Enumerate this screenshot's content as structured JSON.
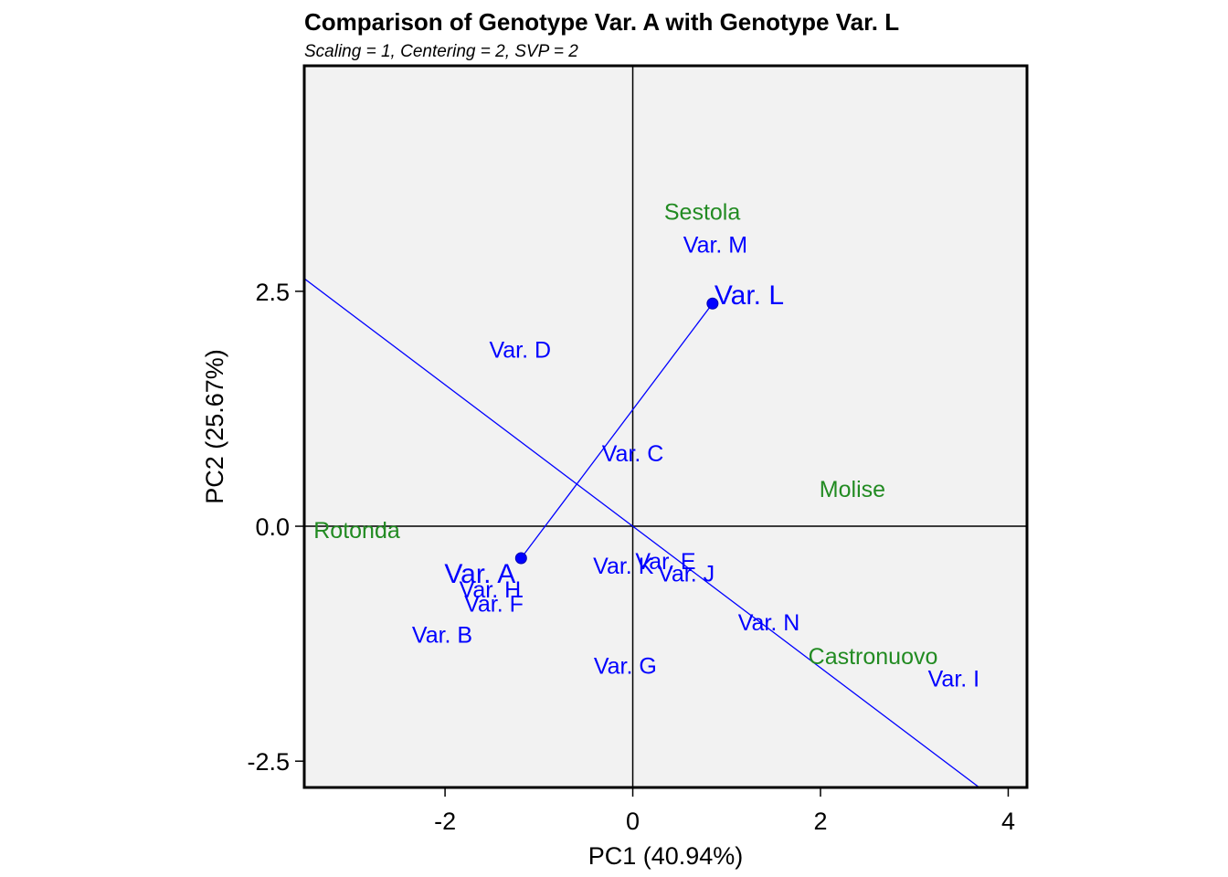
{
  "chart_data": {
    "type": "scatter",
    "title": "Comparison of Genotype Var. A with Genotype Var. L",
    "subtitle": "Scaling = 1, Centering = 2, SVP = 2",
    "xlabel": "PC1 (40.94%)",
    "ylabel": "PC2 (25.67%)",
    "xlim": [
      -3.5,
      4.2
    ],
    "ylim": [
      -2.78,
      4.9
    ],
    "xticks": [
      -2,
      0,
      2,
      4
    ],
    "xtick_labels": [
      "-2",
      "0",
      "2",
      "4"
    ],
    "yticks": [
      -2.5,
      0.0,
      2.5
    ],
    "ytick_labels": [
      "-2.5",
      "0.0",
      "2.5"
    ],
    "grid": false,
    "colors": {
      "panel_background": "#f2f2f2",
      "genotype": "#0000ff",
      "environment": "#228b22",
      "axes_lines": "#000000",
      "comparison_line": "#0000ff"
    },
    "genotypes": [
      {
        "label": "Var. A",
        "x": -1.19,
        "y": -0.34,
        "highlight": true
      },
      {
        "label": "Var. L",
        "x": 0.85,
        "y": 2.37,
        "highlight": true
      },
      {
        "label": "Var. M",
        "x": 0.88,
        "y": 3.0
      },
      {
        "label": "Var. D",
        "x": -1.2,
        "y": 1.88
      },
      {
        "label": "Var. C",
        "x": 0.0,
        "y": 0.78
      },
      {
        "label": "Var. H",
        "x": -1.52,
        "y": -0.67
      },
      {
        "label": "Var. F",
        "x": -1.48,
        "y": -0.82
      },
      {
        "label": "Var. B",
        "x": -2.03,
        "y": -1.15
      },
      {
        "label": "Var. K",
        "x": -0.1,
        "y": -0.42
      },
      {
        "label": "Var. E",
        "x": 0.35,
        "y": -0.37
      },
      {
        "label": "Var. J",
        "x": 0.57,
        "y": -0.5
      },
      {
        "label": "Var. N",
        "x": 1.45,
        "y": -1.02
      },
      {
        "label": "Var. G",
        "x": -0.08,
        "y": -1.48
      },
      {
        "label": "Var. I",
        "x": 3.42,
        "y": -1.62
      }
    ],
    "environments": [
      {
        "label": "Sestola",
        "x": 0.74,
        "y": 3.35
      },
      {
        "label": "Molise",
        "x": 2.34,
        "y": 0.4
      },
      {
        "label": "Rotonda",
        "x": -2.94,
        "y": -0.04
      },
      {
        "label": "Castronuovo",
        "x": 2.56,
        "y": -1.38
      }
    ],
    "comparison_segment": {
      "from": "Var. A",
      "to": "Var. L"
    },
    "perpendicular_line_slope": -0.753
  }
}
